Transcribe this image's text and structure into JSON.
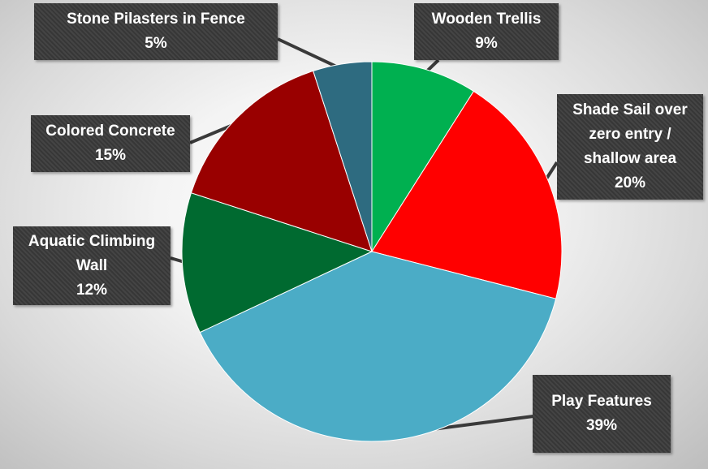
{
  "chart_data": {
    "type": "pie",
    "title": "",
    "slices": [
      {
        "label": "Wooden Trellis",
        "value": 9,
        "display": "9%",
        "color": "#00b050"
      },
      {
        "label": "Shade Sail over zero entry / shallow area",
        "label_lines": [
          "Shade Sail over",
          "zero entry /",
          "shallow area"
        ],
        "value": 20,
        "display": "20%",
        "color": "#ff0000"
      },
      {
        "label": "Play Features",
        "value": 39,
        "display": "39%",
        "color": "#4bacc6"
      },
      {
        "label": "Aquatic Climbing Wall",
        "label_lines": [
          "Aquatic Climbing",
          "Wall"
        ],
        "value": 12,
        "display": "12%",
        "color": "#006a30"
      },
      {
        "label": "Colored Concrete",
        "value": 15,
        "display": "15%",
        "color": "#990000"
      },
      {
        "label": "Stone Pilasters in Fence",
        "value": 5,
        "display": "5%",
        "color": "#2e6b80"
      }
    ],
    "start_angle_deg": 0,
    "direction": "clockwise",
    "data_labels": "callout boxes with leader lines",
    "legend": "none"
  }
}
